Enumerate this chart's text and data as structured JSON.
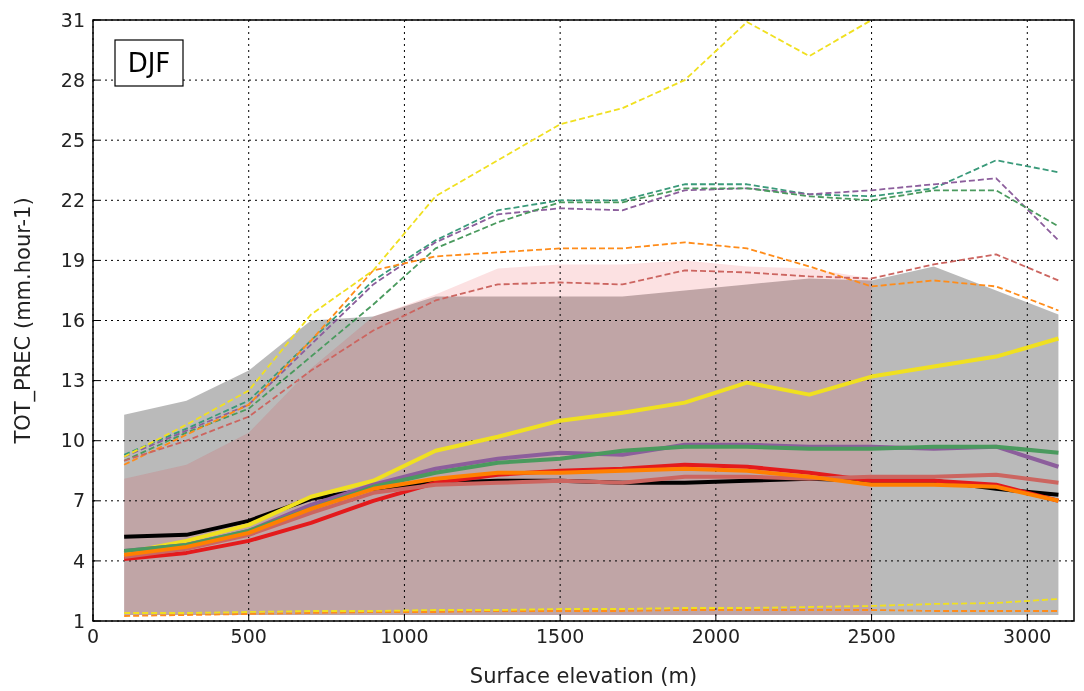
{
  "chart_data": {
    "type": "line",
    "xlabel": "Surface elevation (m)",
    "ylabel": "TOT_PREC (mm.hour-1)",
    "annotations": [
      "DJF"
    ],
    "x": [
      100,
      300,
      500,
      700,
      900,
      1100,
      1300,
      1500,
      1700,
      1900,
      2100,
      2300,
      2500,
      2700,
      2900,
      3100
    ],
    "xlim": [
      0,
      3150
    ],
    "xticks": [
      0,
      500,
      1000,
      1500,
      2000,
      2500,
      3000
    ],
    "ylim": [
      1,
      31
    ],
    "yticks": [
      1,
      4,
      7,
      10,
      13,
      16,
      19,
      22,
      25,
      28,
      31
    ],
    "grid": true,
    "series": [
      {
        "color": "#000000",
        "values": [
          5.2,
          5.3,
          6.0,
          7.1,
          7.6,
          7.9,
          8.0,
          8.0,
          7.9,
          7.9,
          8.0,
          8.1,
          8.0,
          8.0,
          7.6,
          7.3
        ],
        "lower": [
          1.3,
          1.3,
          1.3,
          1.3,
          1.3,
          1.3,
          1.3,
          1.3,
          1.3,
          1.3,
          1.3,
          1.3,
          1.3,
          1.3,
          1.3,
          1.3
        ],
        "upper": [
          11.3,
          12.0,
          13.5,
          16.0,
          16.2,
          17.2,
          17.2,
          17.2,
          17.2,
          17.5,
          17.8,
          18.1,
          18.0,
          18.7,
          17.5,
          16.3
        ]
      },
      {
        "color": "#e41a1c",
        "values": [
          4.1,
          4.4,
          5.0,
          5.9,
          7.0,
          7.9,
          8.3,
          8.5,
          8.6,
          8.8,
          8.7,
          8.4,
          8.0,
          8.0,
          7.8,
          7.0
        ],
        "lower": [
          1.3,
          1.3,
          1.3,
          1.3,
          1.3,
          1.3,
          1.3,
          1.3,
          1.3,
          1.3,
          1.3,
          1.3,
          1.3,
          null,
          null,
          null
        ],
        "upper": [
          8.1,
          8.8,
          10.4,
          13.6,
          16.2,
          17.3,
          18.6,
          18.8,
          18.8,
          19.0,
          18.7,
          18.6,
          18.1,
          null,
          null,
          null
        ]
      },
      {
        "color": "#f0e020",
        "values": [
          4.4,
          5.0,
          5.8,
          7.2,
          8.0,
          9.5,
          10.2,
          11.0,
          11.4,
          11.9,
          12.9,
          12.3,
          13.2,
          13.7,
          14.2,
          15.1
        ]
      },
      {
        "color": "#8c5e9c",
        "values": [
          4.5,
          4.8,
          5.5,
          6.8,
          7.8,
          8.6,
          9.1,
          9.4,
          9.3,
          9.8,
          9.8,
          9.7,
          9.7,
          9.6,
          9.7,
          8.7
        ]
      },
      {
        "color": "#4a9a5e",
        "values": [
          4.5,
          4.8,
          5.5,
          6.6,
          7.7,
          8.4,
          8.9,
          9.1,
          9.5,
          9.7,
          9.7,
          9.6,
          9.6,
          9.7,
          9.7,
          9.4
        ]
      },
      {
        "color": "#cc6560",
        "values": [
          4.2,
          4.6,
          5.3,
          6.4,
          7.4,
          7.8,
          7.9,
          8.0,
          7.9,
          8.2,
          8.2,
          8.1,
          8.2,
          8.2,
          8.3,
          7.9
        ]
      },
      {
        "color": "#ff8000",
        "values": [
          4.3,
          4.7,
          5.4,
          6.6,
          7.6,
          8.1,
          8.4,
          8.4,
          8.5,
          8.6,
          8.5,
          8.2,
          7.8,
          7.8,
          7.7,
          7.0
        ]
      },
      {
        "color": "#3a9a7a",
        "line_style": "dashed",
        "values": [
          9.3,
          10.6,
          12.0,
          15.0,
          18.0,
          20.0,
          21.5,
          22.0,
          22.0,
          22.8,
          22.8,
          22.3,
          22.2,
          22.6,
          24.0,
          23.4
        ]
      },
      {
        "color": "#8c5e9c",
        "line_style": "dashed",
        "values": [
          9.2,
          10.5,
          11.8,
          14.8,
          17.8,
          19.9,
          21.3,
          21.6,
          21.5,
          22.5,
          22.6,
          22.3,
          22.5,
          22.8,
          23.1,
          20.0
        ]
      },
      {
        "color": "#4a9a5e",
        "line_style": "dashed",
        "values": [
          9.0,
          10.4,
          11.6,
          14.2,
          16.8,
          19.6,
          20.9,
          21.9,
          21.9,
          22.6,
          22.6,
          22.2,
          22.0,
          22.5,
          22.5,
          20.7
        ]
      },
      {
        "color": "#ff8c1a",
        "line_style": "dashed",
        "values": [
          8.8,
          10.3,
          11.8,
          15.0,
          18.5,
          19.2,
          19.4,
          19.6,
          19.6,
          19.9,
          19.6,
          18.7,
          17.7,
          18.0,
          17.7,
          16.5
        ]
      },
      {
        "color": "#cc6560",
        "line_style": "dashed",
        "values": [
          9.0,
          10.0,
          11.2,
          13.5,
          15.5,
          17.0,
          17.8,
          17.9,
          17.8,
          18.5,
          18.4,
          18.2,
          18.1,
          18.8,
          19.3,
          18.0
        ]
      },
      {
        "color": "#ff8c1a",
        "line_style": "dashed",
        "values": [
          1.25,
          1.3,
          1.35,
          1.4,
          1.45,
          1.45,
          1.5,
          1.5,
          1.5,
          1.55,
          1.55,
          1.55,
          1.55,
          1.5,
          1.5,
          1.5
        ]
      },
      {
        "color": "#f0e020",
        "line_style": "dashed",
        "values": [
          9.2,
          10.8,
          12.5,
          16.3,
          18.5,
          22.2,
          24.0,
          25.8,
          26.6,
          28.0,
          30.9,
          29.2,
          31.0,
          null,
          null,
          null
        ]
      },
      {
        "color": "#f0e020",
        "line_style": "dashed",
        "values": [
          1.4,
          1.4,
          1.45,
          1.5,
          1.5,
          1.55,
          1.55,
          1.6,
          1.6,
          1.65,
          1.65,
          1.7,
          1.75,
          1.85,
          1.9,
          2.1
        ]
      }
    ]
  }
}
